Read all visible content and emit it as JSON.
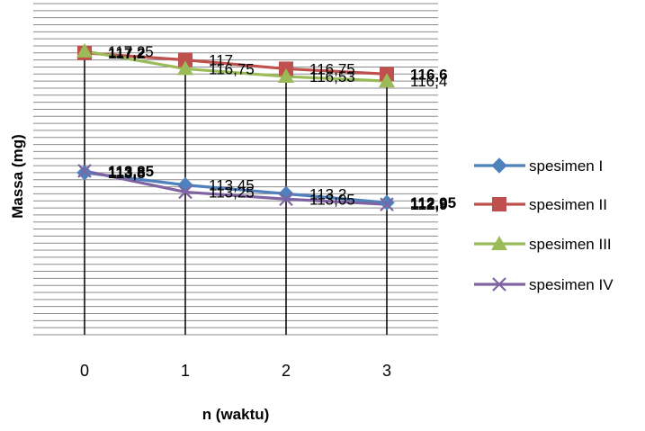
{
  "chart_data": {
    "type": "line",
    "xlabel": "n (waktu)",
    "ylabel": "Massa (mg)",
    "categories": [
      "0",
      "1",
      "2",
      "3"
    ],
    "ylim": [
      109.2,
      118.6
    ],
    "grid": "horizontal",
    "legend": "right",
    "series": [
      {
        "name": "spesimen I",
        "color": "#4f81bd",
        "marker": "diamond",
        "values": [
          113.8,
          113.45,
          113.2,
          112.95
        ],
        "labels": [
          "113,8",
          "113,45",
          "113,2",
          "112,95"
        ]
      },
      {
        "name": "spesimen II",
        "color": "#c0504d",
        "marker": "square",
        "values": [
          117.2,
          117,
          116.75,
          116.6
        ],
        "labels": [
          "117,2",
          "117",
          "116,75",
          "116,6"
        ]
      },
      {
        "name": "spesimen III",
        "color": "#9bbb59",
        "marker": "triangle",
        "values": [
          117.25,
          116.75,
          116.53,
          116.4
        ],
        "labels": [
          "117,25",
          "116,75",
          "116,53",
          "116,4"
        ]
      },
      {
        "name": "spesimen IV",
        "color": "#8064a2",
        "marker": "x",
        "values": [
          113.85,
          113.25,
          113.05,
          112.9
        ],
        "labels": [
          "113,85",
          "113,25",
          "113,05",
          "112,9"
        ]
      }
    ]
  }
}
